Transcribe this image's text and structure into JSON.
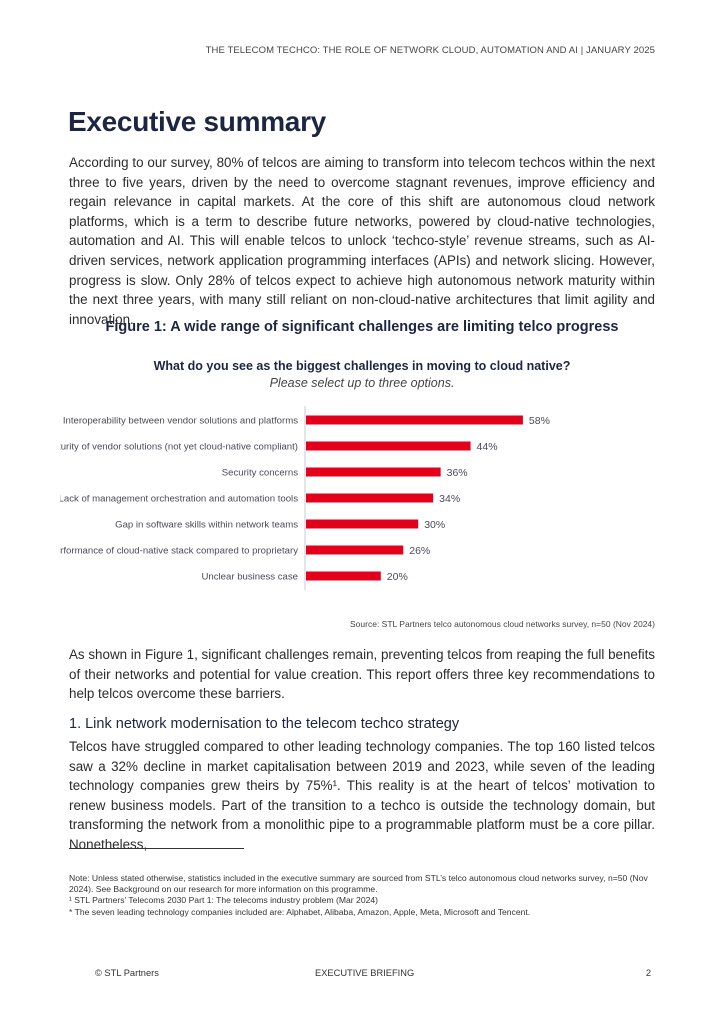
{
  "header": {
    "running_title": "THE TELECOM TECHCO: THE ROLE OF NETWORK CLOUD, AUTOMATION AND AI  |  JANUARY 2025"
  },
  "title": "Executive summary",
  "paragraph1": "According to our survey, 80% of telcos are aiming to transform into telecom techcos within the next three to five years, driven by the need to overcome stagnant revenues, improve efficiency and regain relevance in capital markets. At the core of this shift are autonomous cloud network platforms, which is a term to describe future networks, powered by cloud-native technologies, automation and AI. This will enable telcos to unlock ‘techco-style’ revenue streams, such as AI-driven services, network application programming interfaces (APIs) and network slicing. However, progress is slow. Only 28% of telcos expect to achieve high autonomous network maturity within the next three years, with many still reliant on non-cloud-native architectures that limit agility and innovation.",
  "figure": {
    "title": "Figure 1: A wide range of significant challenges are limiting telco progress",
    "source": "Source: STL Partners telco autonomous cloud networks survey, n=50 (Nov 2024)"
  },
  "chart_data": {
    "type": "bar",
    "orientation": "horizontal",
    "title": "What do you see as the biggest challenges in moving to cloud native?",
    "subtitle": "Please select up to three options.",
    "categories": [
      "Interoperability between vendor solutions and platforms",
      "Maturity of vendor solutions (not yet cloud-native compliant)",
      "Security concerns",
      "Lack of management orchestration and automation tools",
      "Gap in software skills within network teams",
      "Performance of cloud-native stack compared to proprietary",
      "Unclear business case"
    ],
    "values": [
      58,
      44,
      36,
      34,
      30,
      26,
      20
    ],
    "data_labels": [
      "58%",
      "44%",
      "36%",
      "34%",
      "30%",
      "26%",
      "20%"
    ],
    "unit": "%",
    "bar_color": "#e2001a",
    "grid": false
  },
  "paragraph2": "As shown in Figure 1, significant challenges remain, preventing telcos from reaping the full benefits of their networks and potential for value creation. This report offers three key recommendations to help telcos overcome these barriers.",
  "section1": {
    "heading": "1. Link network modernisation to the telecom techco strategy",
    "body": "Telcos have struggled compared to other leading technology companies. The top 160 listed telcos saw a 32% decline in market capitalisation between 2019 and 2023, while seven of the leading technology companies grew theirs by 75%¹. This reality is at the heart of telcos’ motivation to renew business models. Part of the transition to a techco is outside the technology domain, but transforming the network from a monolithic pipe to a programmable platform must be a core pillar. Nonetheless,"
  },
  "notes": [
    "Note: Unless stated otherwise, statistics included in the executive summary are sourced from STL’s telco autonomous cloud networks survey, n=50 (Nov 2024). See Background on our research for more information on this programme.",
    "¹ STL Partners’ Telecoms 2030 Part 1: The telecoms industry problem (Mar 2024)",
    "* The seven leading technology companies included are: Alphabet, Alibaba, Amazon, Apple, Meta, Microsoft and Tencent."
  ],
  "footer": {
    "copyright": "© STL Partners",
    "label": "EXECUTIVE BRIEFING",
    "page": "2"
  }
}
